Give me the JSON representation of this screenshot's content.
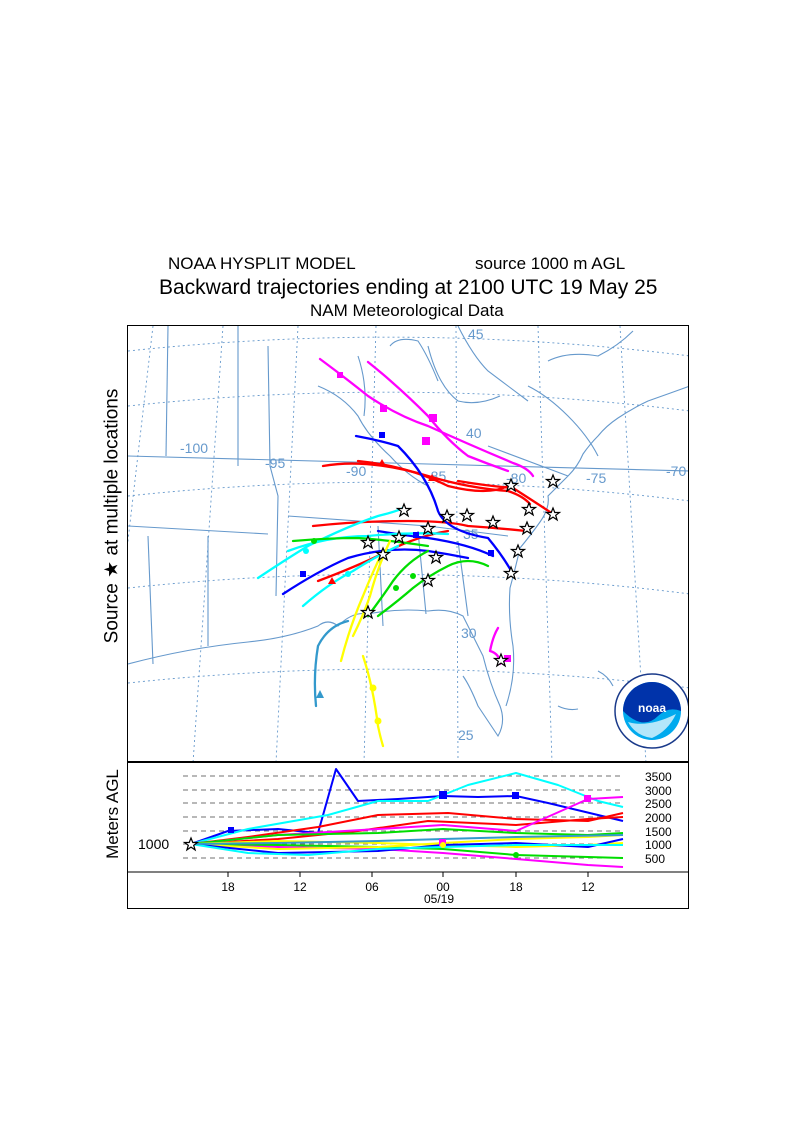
{
  "header": {
    "model": "NOAA HYSPLIT MODEL",
    "source": "source 1000 m AGL",
    "main": "Backward trajectories ending at 2100 UTC 19 May 25",
    "met": "NAM  Meteorological Data"
  },
  "side_label": "Source ★  at multiple locations",
  "map": {
    "lon_labels": [
      "-100",
      "-95",
      "-90",
      "-85",
      "-80",
      "-75",
      "-70"
    ],
    "lat_labels": [
      "45",
      "40",
      "35",
      "30",
      "25"
    ],
    "logo_text": "noaa",
    "source_symbol": "star"
  },
  "altitude_panel": {
    "ylabel": "Meters AGL",
    "start_altitude": "1000",
    "levels": [
      "3500",
      "3000",
      "2500",
      "2000",
      "1500",
      "1000",
      "500"
    ],
    "time_ticks": [
      "18",
      "12",
      "06",
      "00",
      "18",
      "12"
    ],
    "date": "05/19"
  },
  "colors": {
    "red": "#ff0000",
    "blue": "#0000ff",
    "green": "#00dd00",
    "cyan": "#00ffff",
    "magenta": "#ff00ff",
    "yellow": "#ffff00",
    "teal": "#3399cc",
    "map_lines": "#6699cc"
  }
}
